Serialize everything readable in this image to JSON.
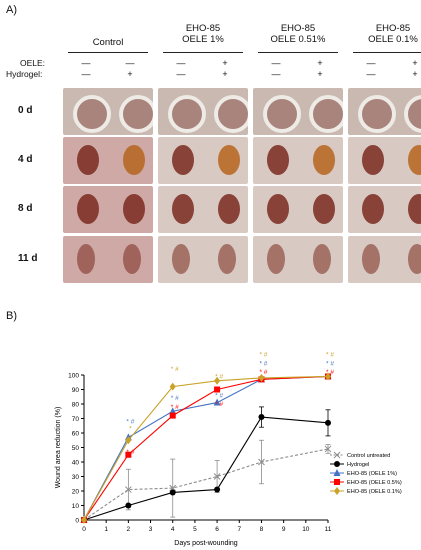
{
  "panel_a": {
    "label": "A)",
    "columns": [
      "Control",
      "EHO-85\nOELE 1%",
      "EHO-85\nOELE 0.51%",
      "EHO-85\nOELE 0.1%"
    ],
    "column_lines": [
      [
        "Control"
      ],
      [
        "EHO-85",
        "OELE 1%"
      ],
      [
        "EHO-85",
        "OELE 0.51%"
      ],
      [
        "EHO-85",
        "OELE 0.1%"
      ]
    ],
    "row_keys": [
      "OELE:",
      "Hydrogel:"
    ],
    "oele_signs": [
      "—",
      "—",
      "—",
      "+",
      "—",
      "+",
      "—",
      "+"
    ],
    "hydrogel_signs": [
      "—",
      "+",
      "—",
      "+",
      "—",
      "+",
      "—",
      "+"
    ],
    "days": [
      "0 d",
      "4 d",
      "8 d",
      "11 d"
    ],
    "photo_colors": {
      "skin": "#d9c9c3",
      "wound_dark": "#7a2a1e",
      "wound_orange": "#b5651d",
      "ring": "#eeeae6"
    }
  },
  "panel_b": {
    "label": "B)"
  },
  "chart_data": {
    "type": "line",
    "xlabel": "Days post-wounding",
    "ylabel": "Wound area reduction (%)",
    "x": [
      0,
      2,
      4,
      6,
      8,
      11
    ],
    "xticks": [
      0,
      1,
      2,
      3,
      4,
      5,
      6,
      7,
      8,
      9,
      10,
      11
    ],
    "xlim": [
      0,
      11
    ],
    "ylim": [
      0,
      100
    ],
    "yticks": [
      0,
      10,
      20,
      30,
      40,
      50,
      60,
      70,
      80,
      90,
      100
    ],
    "series": [
      {
        "name": "Control untreated",
        "color": "#8c8c8c",
        "marker": "x",
        "dashed": true,
        "values": [
          0,
          21,
          22,
          30,
          40,
          49
        ],
        "errors": [
          0,
          14,
          20,
          11,
          15,
          3
        ]
      },
      {
        "name": "Hydrogel",
        "color": "#000000",
        "marker": "circle",
        "dashed": false,
        "values": [
          0,
          10,
          19,
          21,
          71,
          67
        ],
        "errors": [
          0,
          0,
          0,
          0,
          7,
          9
        ]
      },
      {
        "name": "EHO-85 (OELE 1%)",
        "color": "#4472c4",
        "marker": "triangle",
        "dashed": false,
        "values": [
          0,
          57,
          75,
          81,
          97,
          99
        ],
        "errors": [
          0,
          0,
          0,
          0,
          0,
          0
        ]
      },
      {
        "name": "EHO-85 (OELE 0.5%)",
        "color": "#ff0000",
        "marker": "square",
        "dashed": false,
        "values": [
          0,
          45,
          72,
          90,
          97,
          99
        ],
        "errors": [
          0,
          0,
          0,
          0,
          0,
          0
        ]
      },
      {
        "name": "EHO-85 (OELE 0.1%)",
        "color": "#c9a227",
        "marker": "diamond",
        "dashed": false,
        "values": [
          0,
          55,
          92,
          96,
          98,
          99
        ],
        "errors": [
          0,
          0,
          0,
          0,
          0,
          0
        ]
      }
    ],
    "annotations": [
      {
        "x": 2,
        "y": 68,
        "text": "* #",
        "color": "#4472c4"
      },
      {
        "x": 2,
        "y": 63,
        "text": "*",
        "color": "#c9a227"
      },
      {
        "x": 2,
        "y": 47,
        "text": "* #",
        "color": "#ff0000"
      },
      {
        "x": 4,
        "y": 104,
        "text": "* #",
        "color": "#c9a227"
      },
      {
        "x": 4,
        "y": 84,
        "text": "* #",
        "color": "#4472c4"
      },
      {
        "x": 4,
        "y": 78,
        "text": "* #",
        "color": "#ff0000"
      },
      {
        "x": 6,
        "y": 99,
        "text": "* #",
        "color": "#c9a227"
      },
      {
        "x": 6,
        "y": 86,
        "text": "* #",
        "color": "#4472c4"
      },
      {
        "x": 6,
        "y": 80,
        "text": "* #",
        "color": "#ff0000"
      },
      {
        "x": 8,
        "y": 114,
        "text": "* #",
        "color": "#c9a227"
      },
      {
        "x": 8,
        "y": 108,
        "text": "* #",
        "color": "#4472c4"
      },
      {
        "x": 8,
        "y": 102,
        "text": "* #",
        "color": "#ff0000"
      },
      {
        "x": 11,
        "y": 114,
        "text": "* #",
        "color": "#c9a227"
      },
      {
        "x": 11,
        "y": 108,
        "text": "* #",
        "color": "#4472c4"
      },
      {
        "x": 11,
        "y": 102,
        "text": "* #",
        "color": "#ff0000"
      }
    ],
    "legend_position": "right"
  }
}
